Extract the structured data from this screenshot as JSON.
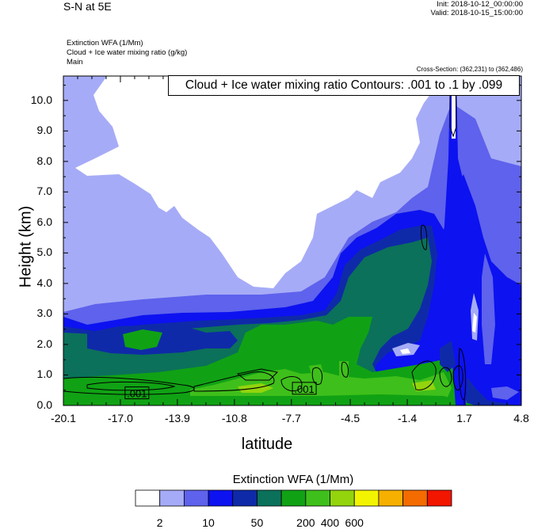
{
  "header": {
    "title": "S-N at 5E",
    "init": "Init: 2018-10-12_00:00:00",
    "valid": "Valid: 2018-10-15_15:00:00",
    "field1": "Extinction WFA   (1/Mm)",
    "field2": "Cloud + Ice water mixing ratio   (g/kg)",
    "field3": "Main",
    "cross_section": "Cross-Section: (362,231) to (362,486)",
    "contour_info": "Cloud + Ice water mixing ratio Contours: .001 to .1 by .099"
  },
  "colors": {
    "levels": [
      "#ffffff",
      "#a6abf7",
      "#5e62ec",
      "#0d12f0",
      "#0f2aa8",
      "#0b715a",
      "#10a214",
      "#3fbf1b",
      "#93d40d",
      "#f3f500",
      "#f6b100",
      "#f46b00",
      "#f21500"
    ],
    "background_lowest": "#ffffff"
  },
  "chart_data": {
    "type": "filled-contour",
    "title": "",
    "xlabel": "latitude",
    "ylabel": "Height (km)",
    "xlim": [
      -20.1,
      4.8
    ],
    "ylim": [
      0.0,
      10.8
    ],
    "x_ticks": [
      "-20.1",
      "-17.0",
      "-13.9",
      "-10.8",
      "-7.7",
      "-4.5",
      "-1.4",
      "1.7",
      "4.8"
    ],
    "x_tick_values": [
      -20.1,
      -17.0,
      -13.9,
      -10.8,
      -7.7,
      -4.5,
      -1.4,
      1.7,
      4.8
    ],
    "y_ticks": [
      "0.0",
      "1.0",
      "2.0",
      "3.0",
      "4.0",
      "5.0",
      "6.0",
      "7.0",
      "8.0",
      "9.0",
      "10.0"
    ],
    "y_tick_values": [
      0,
      1,
      2,
      3,
      4,
      5,
      6,
      7,
      8,
      9,
      10
    ],
    "contour_labels": [
      {
        "text": ".001",
        "lat": -16.1,
        "height": 0.4
      },
      {
        "text": ".001",
        "lat": -7.0,
        "height": 0.55
      }
    ],
    "colorbar": {
      "title": "Extinction WFA  (1/Mm)",
      "labels": [
        "2",
        "10",
        "50",
        "200",
        "400",
        "600"
      ],
      "label_boundaries": [
        1,
        3,
        5,
        7,
        8,
        9
      ]
    }
  }
}
